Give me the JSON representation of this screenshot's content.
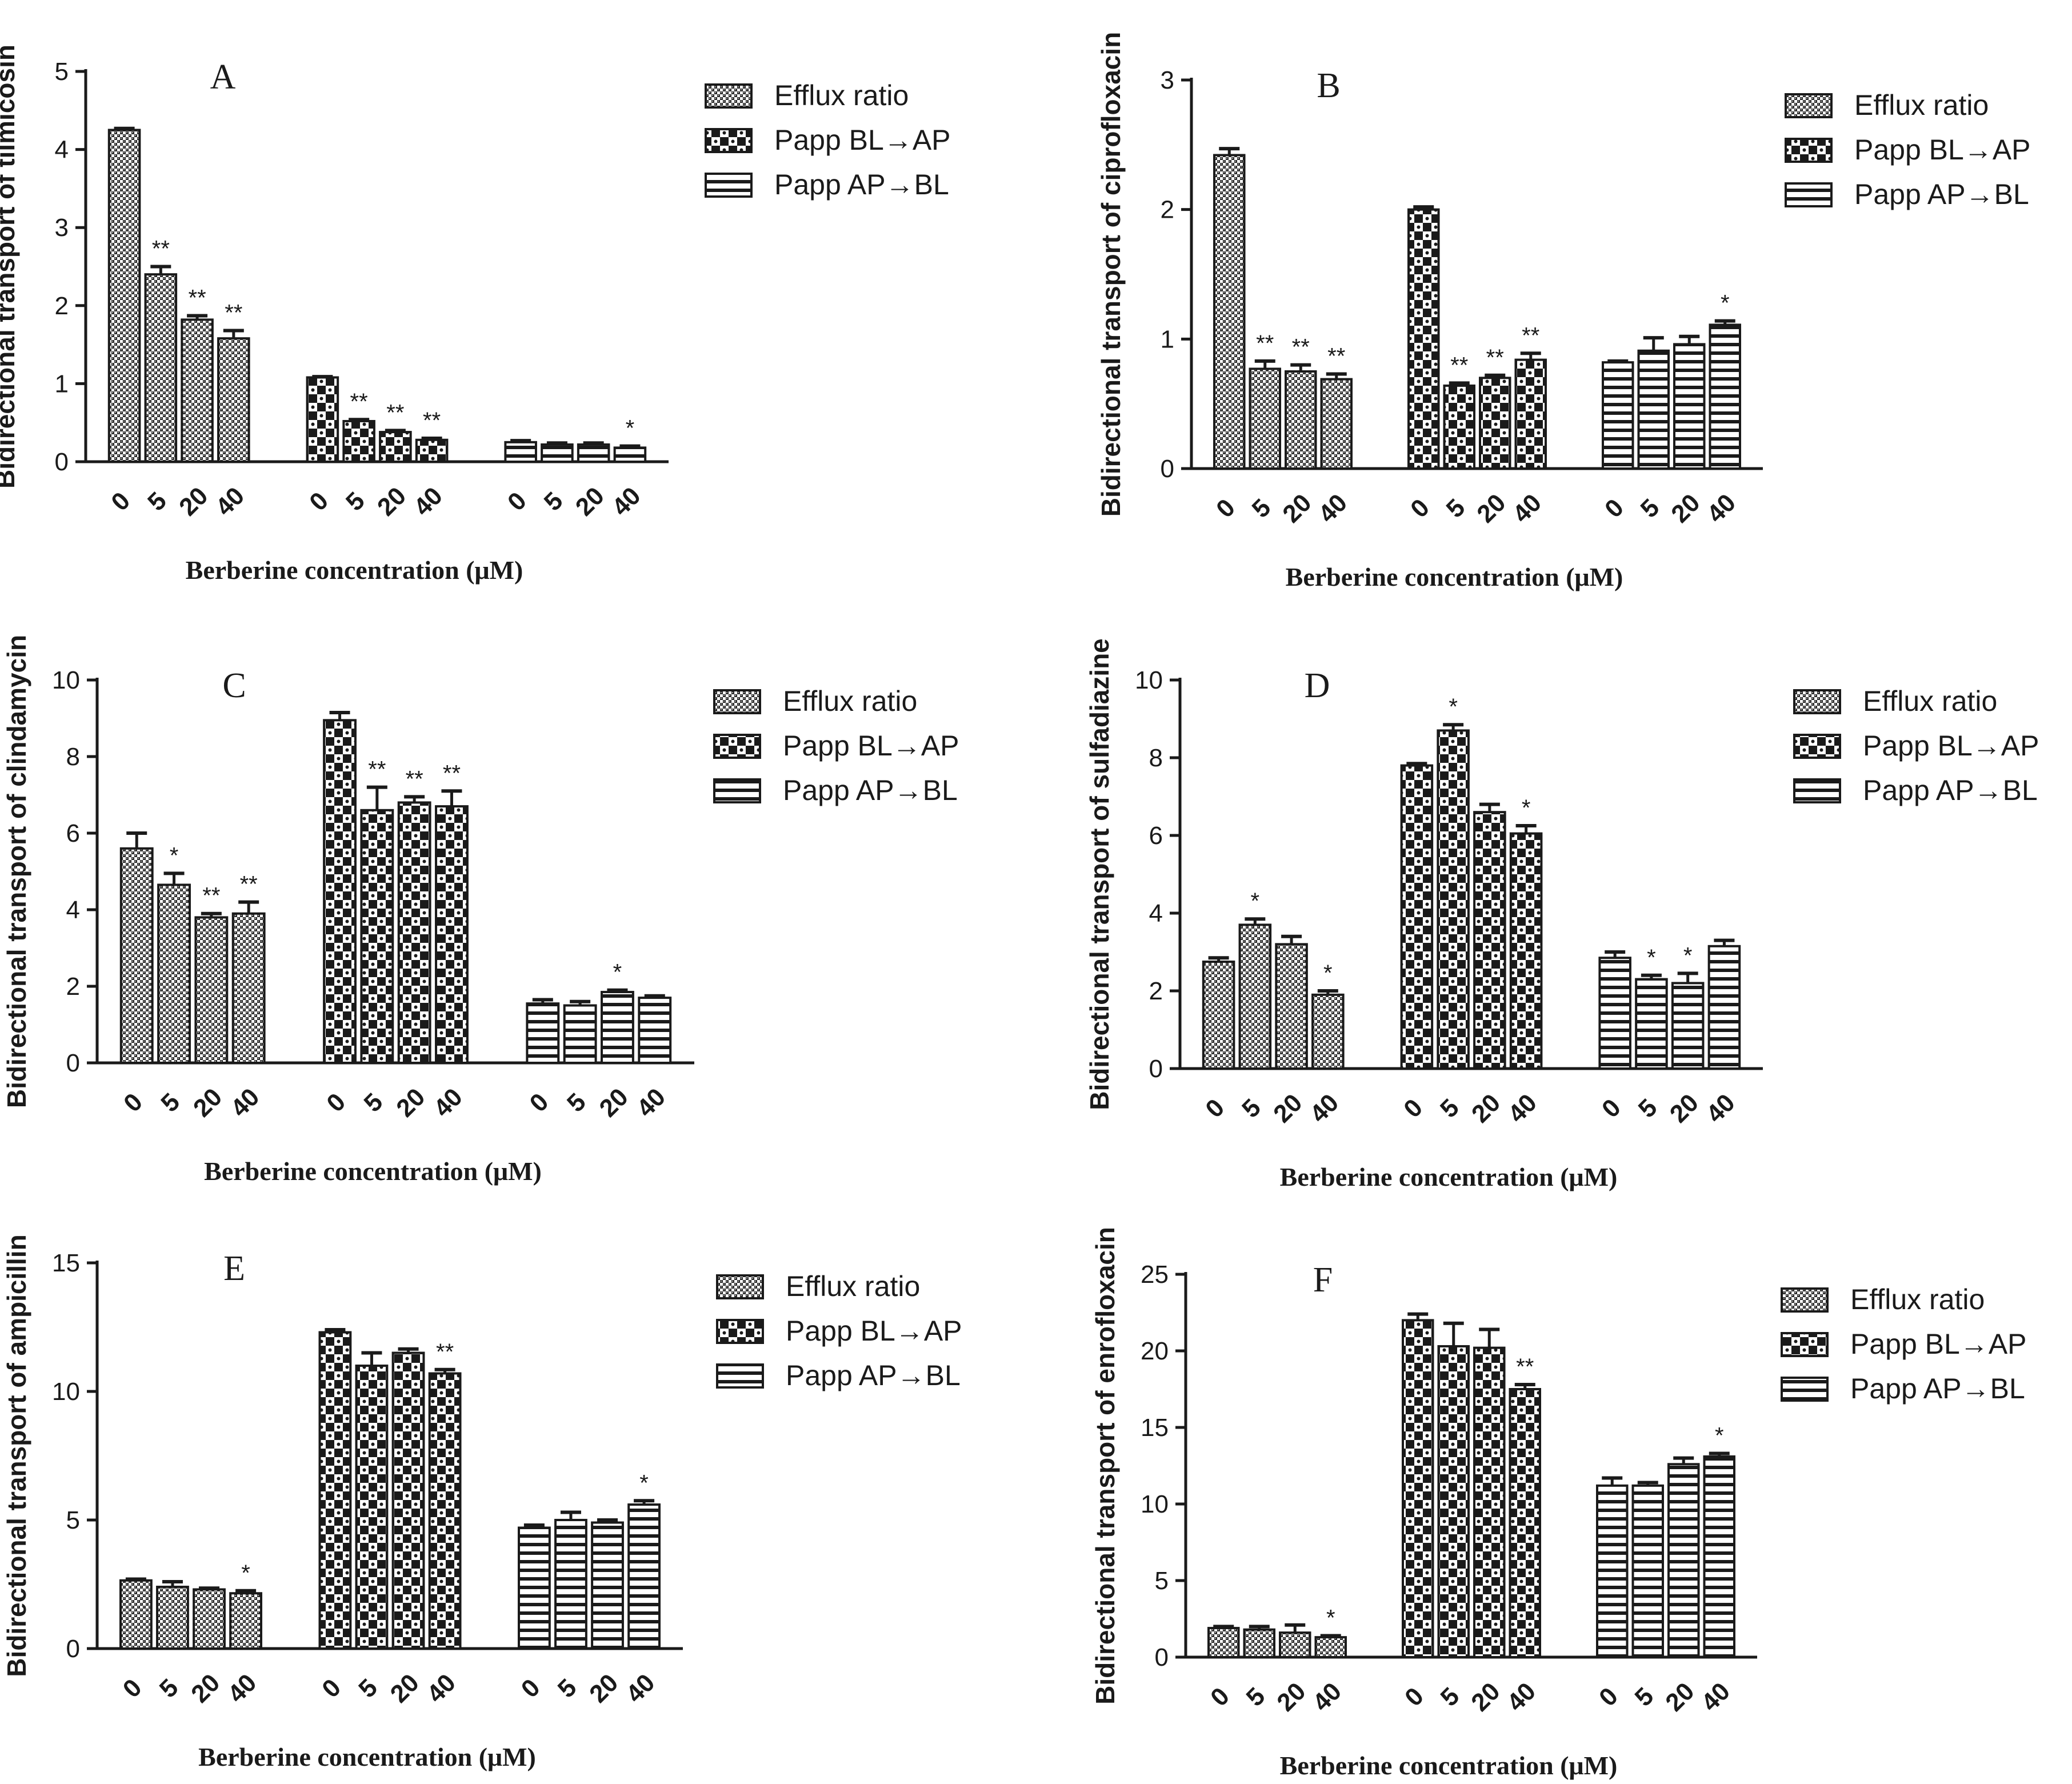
{
  "chart_data": [
    {
      "type": "bar",
      "panel": "A",
      "ylabel": "Bidirectional transport of tilmicosin",
      "xlabel": "Berberine concentration (μM)",
      "ylim": [
        0,
        5
      ],
      "yticks": [
        "0",
        "1",
        "2",
        "3",
        "4",
        "5"
      ],
      "categories": [
        "0",
        "5",
        "20",
        "40"
      ],
      "legend": [
        "Efflux ratio",
        "Papp BL→AP",
        "Papp AP→BL"
      ],
      "series": [
        {
          "name": "Efflux ratio",
          "values": [
            4.25,
            2.4,
            1.82,
            1.58
          ],
          "errors": [
            0.02,
            0.1,
            0.05,
            0.1
          ],
          "sig": [
            "",
            "**",
            "**",
            "**"
          ]
        },
        {
          "name": "Papp BL→AP",
          "values": [
            1.08,
            0.52,
            0.38,
            0.28
          ],
          "errors": [
            0.01,
            0.02,
            0.02,
            0.02
          ],
          "sig": [
            "",
            "**",
            "**",
            "**"
          ]
        },
        {
          "name": "Papp AP→BL",
          "values": [
            0.25,
            0.22,
            0.22,
            0.18
          ],
          "errors": [
            0.02,
            0.02,
            0.02,
            0.02
          ],
          "sig": [
            "",
            "",
            "",
            "*"
          ]
        }
      ]
    },
    {
      "type": "bar",
      "panel": "B",
      "ylabel": "Bidirectional transport of ciprofloxacin",
      "xlabel": "Berberine concentration (μM)",
      "ylim": [
        0,
        3
      ],
      "yticks": [
        "0",
        "1",
        "2",
        "3"
      ],
      "categories": [
        "0",
        "5",
        "20",
        "40"
      ],
      "legend": [
        "Efflux ratio",
        "Papp BL→AP",
        "Papp AP→BL"
      ],
      "series": [
        {
          "name": "Efflux ratio",
          "values": [
            2.42,
            0.77,
            0.75,
            0.69
          ],
          "errors": [
            0.05,
            0.06,
            0.05,
            0.04
          ],
          "sig": [
            "",
            "**",
            "**",
            "**"
          ]
        },
        {
          "name": "Papp BL→AP",
          "values": [
            2.0,
            0.64,
            0.7,
            0.84
          ],
          "errors": [
            0.02,
            0.02,
            0.02,
            0.05
          ],
          "sig": [
            "",
            "**",
            "**",
            "**"
          ]
        },
        {
          "name": "Papp AP→BL",
          "values": [
            0.82,
            0.91,
            0.96,
            1.11
          ],
          "errors": [
            0.01,
            0.1,
            0.06,
            0.03
          ],
          "sig": [
            "",
            "",
            "",
            "*"
          ]
        }
      ]
    },
    {
      "type": "bar",
      "panel": "C",
      "ylabel": "Bidirectional transport of clindamycin",
      "xlabel": "Berberine concentration (μM)",
      "ylim": [
        0,
        10
      ],
      "yticks": [
        "0",
        "2",
        "4",
        "6",
        "8",
        "10"
      ],
      "categories": [
        "0",
        "5",
        "20",
        "40"
      ],
      "legend": [
        "Efflux ratio",
        "Papp BL→AP",
        "Papp AP→BL"
      ],
      "series": [
        {
          "name": "Efflux ratio",
          "values": [
            5.6,
            4.65,
            3.8,
            3.9
          ],
          "errors": [
            0.4,
            0.3,
            0.1,
            0.3
          ],
          "sig": [
            "",
            "*",
            "**",
            "**"
          ]
        },
        {
          "name": "Papp BL→AP",
          "values": [
            8.95,
            6.6,
            6.8,
            6.7
          ],
          "errors": [
            0.2,
            0.6,
            0.15,
            0.4
          ],
          "sig": [
            "",
            "**",
            "**",
            "**"
          ]
        },
        {
          "name": "Papp AP→BL",
          "values": [
            1.55,
            1.5,
            1.85,
            1.7
          ],
          "errors": [
            0.1,
            0.1,
            0.05,
            0.05
          ],
          "sig": [
            "",
            "",
            "*",
            ""
          ]
        }
      ]
    },
    {
      "type": "bar",
      "panel": "D",
      "ylabel": "Bidirectional transport of sulfadiazine",
      "xlabel": "Berberine concentration (μM)",
      "ylim": [
        0,
        10
      ],
      "yticks": [
        "0",
        "2",
        "4",
        "6",
        "8",
        "10"
      ],
      "categories": [
        "0",
        "5",
        "20",
        "40"
      ],
      "legend": [
        "Efflux ratio",
        "Papp BL→AP",
        "Papp AP→BL"
      ],
      "series": [
        {
          "name": "Efflux ratio",
          "values": [
            2.75,
            3.7,
            3.2,
            1.9
          ],
          "errors": [
            0.1,
            0.15,
            0.2,
            0.1
          ],
          "sig": [
            "",
            "*",
            "",
            "*"
          ]
        },
        {
          "name": "Papp BL→AP",
          "values": [
            7.8,
            8.7,
            6.6,
            6.05
          ],
          "errors": [
            0.05,
            0.15,
            0.2,
            0.2
          ],
          "sig": [
            "",
            "*",
            "",
            "*"
          ]
        },
        {
          "name": "Papp AP→BL",
          "values": [
            2.85,
            2.3,
            2.2,
            3.15
          ],
          "errors": [
            0.15,
            0.1,
            0.25,
            0.15
          ],
          "sig": [
            "",
            "*",
            "*",
            ""
          ]
        }
      ]
    },
    {
      "type": "bar",
      "panel": "E",
      "ylabel": "Bidirectional transport of ampicillin",
      "xlabel": "Berberine concentration (μM)",
      "ylim": [
        0,
        15
      ],
      "yticks": [
        "0",
        "5",
        "10",
        "15"
      ],
      "categories": [
        "0",
        "5",
        "20",
        "40"
      ],
      "legend": [
        "Efflux ratio",
        "Papp BL→AP",
        "Papp AP→BL"
      ],
      "series": [
        {
          "name": "Efflux ratio",
          "values": [
            2.65,
            2.4,
            2.3,
            2.15
          ],
          "errors": [
            0.05,
            0.2,
            0.05,
            0.1
          ],
          "sig": [
            "",
            "",
            "",
            "*"
          ]
        },
        {
          "name": "Papp BL→AP",
          "values": [
            12.3,
            11.0,
            11.5,
            10.7
          ],
          "errors": [
            0.1,
            0.5,
            0.15,
            0.15
          ],
          "sig": [
            "",
            "",
            "",
            "**"
          ]
        },
        {
          "name": "Papp AP→BL",
          "values": [
            4.7,
            5.0,
            4.9,
            5.6
          ],
          "errors": [
            0.1,
            0.3,
            0.1,
            0.15
          ],
          "sig": [
            "",
            "",
            "",
            "*"
          ]
        }
      ]
    },
    {
      "type": "bar",
      "panel": "F",
      "ylabel": "Bidirectional transport of enrofloxacin",
      "xlabel": "Berberine concentration (μM)",
      "ylim": [
        0,
        25
      ],
      "yticks": [
        "0",
        "5",
        "10",
        "15",
        "20",
        "25"
      ],
      "categories": [
        "0",
        "5",
        "20",
        "40"
      ],
      "legend": [
        "Efflux ratio",
        "Papp BL→AP",
        "Papp AP→BL"
      ],
      "series": [
        {
          "name": "Efflux ratio",
          "values": [
            1.9,
            1.8,
            1.6,
            1.3
          ],
          "errors": [
            0.1,
            0.2,
            0.5,
            0.1
          ],
          "sig": [
            "",
            "",
            "",
            "*"
          ]
        },
        {
          "name": "Papp BL→AP",
          "values": [
            22.0,
            20.3,
            20.2,
            17.5
          ],
          "errors": [
            0.4,
            1.5,
            1.2,
            0.3
          ],
          "sig": [
            "",
            "",
            "",
            "**"
          ]
        },
        {
          "name": "Papp AP→BL",
          "values": [
            11.2,
            11.2,
            12.6,
            13.1
          ],
          "errors": [
            0.5,
            0.2,
            0.4,
            0.2
          ],
          "sig": [
            "",
            "",
            "",
            "*"
          ]
        }
      ]
    }
  ]
}
